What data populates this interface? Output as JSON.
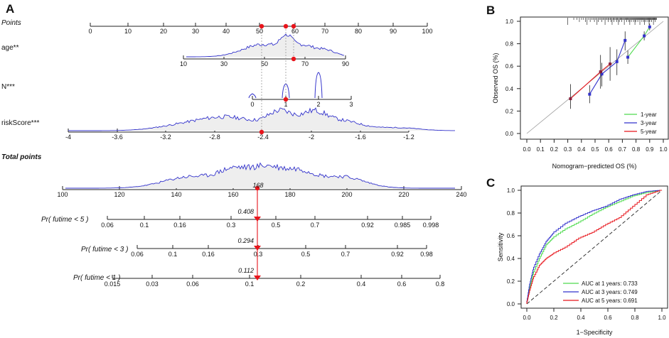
{
  "colors": {
    "blue": "#3333cc",
    "red": "#e8141b",
    "green": "#4ddb4d",
    "fill": "#eeeeee",
    "axis": "#222222",
    "grey": "#9a9a9a"
  },
  "panel_a": {
    "letter": "A",
    "rows": [
      {
        "label": "Points",
        "ticks": [
          "0",
          "10",
          "20",
          "30",
          "40",
          "50",
          "60",
          "70",
          "80",
          "90",
          "100"
        ]
      },
      {
        "label": "age**",
        "ticks": [
          "10",
          "30",
          "50",
          "70",
          "90"
        ]
      },
      {
        "label": "N***",
        "ticks": [
          "0",
          "1",
          "2",
          "3"
        ]
      },
      {
        "label": "riskScore***",
        "ticks": [
          "-4",
          "-3.6",
          "-3.2",
          "-2.8",
          "-2.4",
          "-2",
          "-1.6",
          "-1.2"
        ]
      },
      {
        "label": "Total points",
        "ticks": [
          "100",
          "120",
          "140",
          "160",
          "180",
          "200",
          "220",
          "240"
        ]
      },
      {
        "label": "Pr( futime < 5 )",
        "ticks": [
          "0.06",
          "0.1",
          "0.16",
          "0.3",
          "0.5",
          "0.7",
          "0.92",
          "0.985",
          "0.998"
        ],
        "marker": "0.408"
      },
      {
        "label": "Pr( futime < 3 )",
        "ticks": [
          "0.06",
          "0.1",
          "0.16",
          "0.3",
          "0.5",
          "0.7",
          "0.92",
          "0.98"
        ],
        "marker": "0.294"
      },
      {
        "label": "Pr( futime < 1 )",
        "ticks": [
          "0.015",
          "0.03",
          "0.06",
          "0.1",
          "0.2",
          "0.4",
          "0.6",
          "0.8"
        ],
        "marker": "0.112"
      }
    ],
    "total_value": "168",
    "point_values": {
      "points": [
        51,
        58,
        61
      ],
      "age": 62,
      "n": 1,
      "riskScore": -2.42,
      "total": 168
    }
  },
  "chart_data": [
    {
      "type": "line",
      "panel": "B",
      "xlabel": "Nomogram−predicted OS (%)",
      "ylabel": "Observed OS (%)",
      "xlim": [
        0,
        1
      ],
      "ylim": [
        0,
        1
      ],
      "x_ticks": [
        "0.0",
        "0.1",
        "0.2",
        "0.3",
        "0.4",
        "0.5",
        "0.6",
        "0.7",
        "0.8",
        "0.9",
        "1.0"
      ],
      "y_ticks": [
        "0.0",
        "0.2",
        "0.4",
        "0.6",
        "0.8",
        "1.0"
      ],
      "series": [
        {
          "name": "1-year",
          "x": [
            0.74,
            0.86,
            0.9
          ],
          "y": [
            0.68,
            0.87,
            0.95
          ],
          "lo": [
            0.62,
            0.83,
            0.92
          ],
          "hi": [
            0.74,
            0.91,
            0.98
          ]
        },
        {
          "name": "3-year",
          "x": [
            0.46,
            0.55,
            0.66,
            0.72
          ],
          "y": [
            0.35,
            0.53,
            0.64,
            0.83
          ],
          "lo": [
            0.27,
            0.42,
            0.52,
            0.74
          ],
          "hi": [
            0.43,
            0.63,
            0.75,
            0.91
          ]
        },
        {
          "name": "5-year",
          "x": [
            0.32,
            0.54,
            0.61
          ],
          "y": [
            0.31,
            0.55,
            0.62
          ],
          "lo": [
            0.22,
            0.4,
            0.47
          ],
          "hi": [
            0.44,
            0.7,
            0.77
          ]
        }
      ],
      "legend": [
        "1-year",
        "3-year",
        "5-year"
      ]
    },
    {
      "type": "line",
      "panel": "C",
      "xlabel": "1−Specificity",
      "ylabel": "Sensitivity",
      "xlim": [
        0,
        1
      ],
      "ylim": [
        0,
        1
      ],
      "x_ticks": [
        "0.0",
        "0.2",
        "0.4",
        "0.6",
        "0.8",
        "1.0"
      ],
      "y_ticks": [
        "0.0",
        "0.2",
        "0.4",
        "0.6",
        "0.8",
        "1.0"
      ],
      "series": [
        {
          "name": "AUC at 1 years: 0.733",
          "x": [
            0,
            0.02,
            0.05,
            0.1,
            0.15,
            0.2,
            0.3,
            0.4,
            0.5,
            0.6,
            0.7,
            0.8,
            0.9,
            1
          ],
          "y": [
            0,
            0.12,
            0.26,
            0.4,
            0.52,
            0.58,
            0.66,
            0.72,
            0.79,
            0.85,
            0.9,
            0.95,
            0.98,
            1
          ]
        },
        {
          "name": "AUC at 3 years: 0.749",
          "x": [
            0,
            0.02,
            0.05,
            0.1,
            0.15,
            0.2,
            0.3,
            0.4,
            0.5,
            0.6,
            0.7,
            0.8,
            0.9,
            1
          ],
          "y": [
            0,
            0.15,
            0.3,
            0.44,
            0.55,
            0.62,
            0.71,
            0.77,
            0.82,
            0.86,
            0.92,
            0.96,
            0.99,
            1
          ]
        },
        {
          "name": "AUC at 5 years: 0.691",
          "x": [
            0,
            0.02,
            0.05,
            0.1,
            0.15,
            0.2,
            0.3,
            0.4,
            0.5,
            0.6,
            0.7,
            0.8,
            0.9,
            1
          ],
          "y": [
            0,
            0.1,
            0.22,
            0.34,
            0.4,
            0.44,
            0.5,
            0.58,
            0.63,
            0.7,
            0.76,
            0.86,
            0.96,
            1
          ]
        }
      ],
      "legend": [
        "AUC at 1 years: 0.733",
        "AUC at 3 years: 0.749",
        "AUC at 5 years: 0.691"
      ]
    }
  ]
}
